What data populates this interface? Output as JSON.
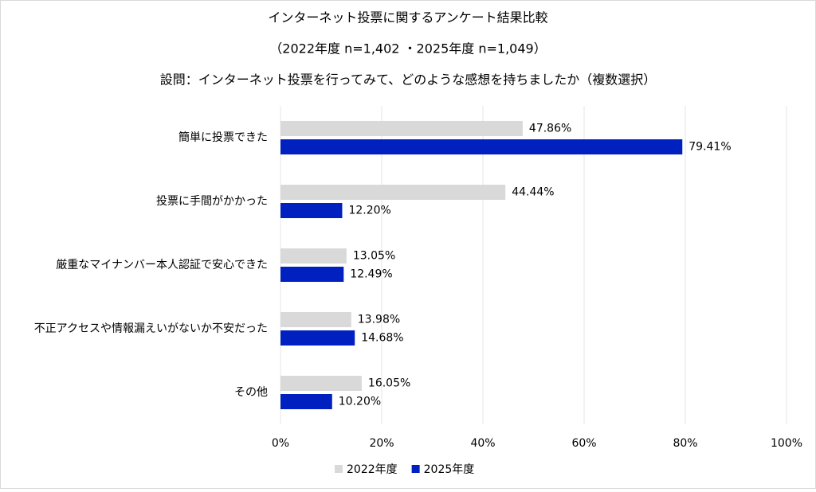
{
  "chart_data": {
    "type": "hbar",
    "title": "インターネット投票に関するアンケート結果比較",
    "subtitle": "（2022年度 n=1,402 ・2025年度 n=1,049）",
    "question": "設問：インターネット投票を行ってみて、どのような感想を持ちましたか（複数選択）",
    "categories": [
      "簡単に投票できた",
      "投票に手間がかかった",
      "厳重なマイナンバー本人認証で安心できた",
      "不正アクセスや情報漏えいがないか不安だった",
      "その他"
    ],
    "series": [
      {
        "name": "2022年度",
        "color": "#d9d9d9",
        "values": [
          47.86,
          44.44,
          13.05,
          13.98,
          16.05
        ],
        "value_labels": [
          "47.86%",
          "44.44%",
          "13.05%",
          "13.98%",
          "16.05%"
        ]
      },
      {
        "name": "2025年度",
        "color": "#0020c0",
        "values": [
          79.41,
          12.2,
          12.49,
          14.68,
          10.2
        ],
        "value_labels": [
          "79.41%",
          "12.20%",
          "12.49%",
          "14.68%",
          "10.20%"
        ]
      }
    ],
    "xlim": [
      0,
      100
    ],
    "xticks": [
      {
        "value": 0,
        "label": "0%"
      },
      {
        "value": 20,
        "label": "20%"
      },
      {
        "value": 40,
        "label": "40%"
      },
      {
        "value": 60,
        "label": "60%"
      },
      {
        "value": 80,
        "label": "80%"
      },
      {
        "value": 100,
        "label": "100%"
      }
    ],
    "grid": true,
    "legend": "bottom"
  }
}
